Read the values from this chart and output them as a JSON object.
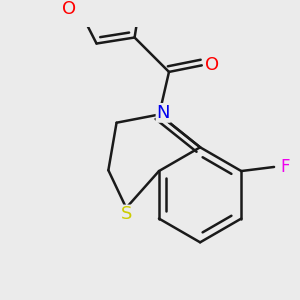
{
  "bg_color": "#ebebeb",
  "bond_color": "#1a1a1a",
  "bond_width": 1.8,
  "atom_colors": {
    "O_carbonyl": "#ff0000",
    "O_furan": "#ff0000",
    "N": "#0000ee",
    "S": "#cccc00",
    "F": "#ee00ee",
    "C": "#1a1a1a"
  },
  "font_size": 11
}
